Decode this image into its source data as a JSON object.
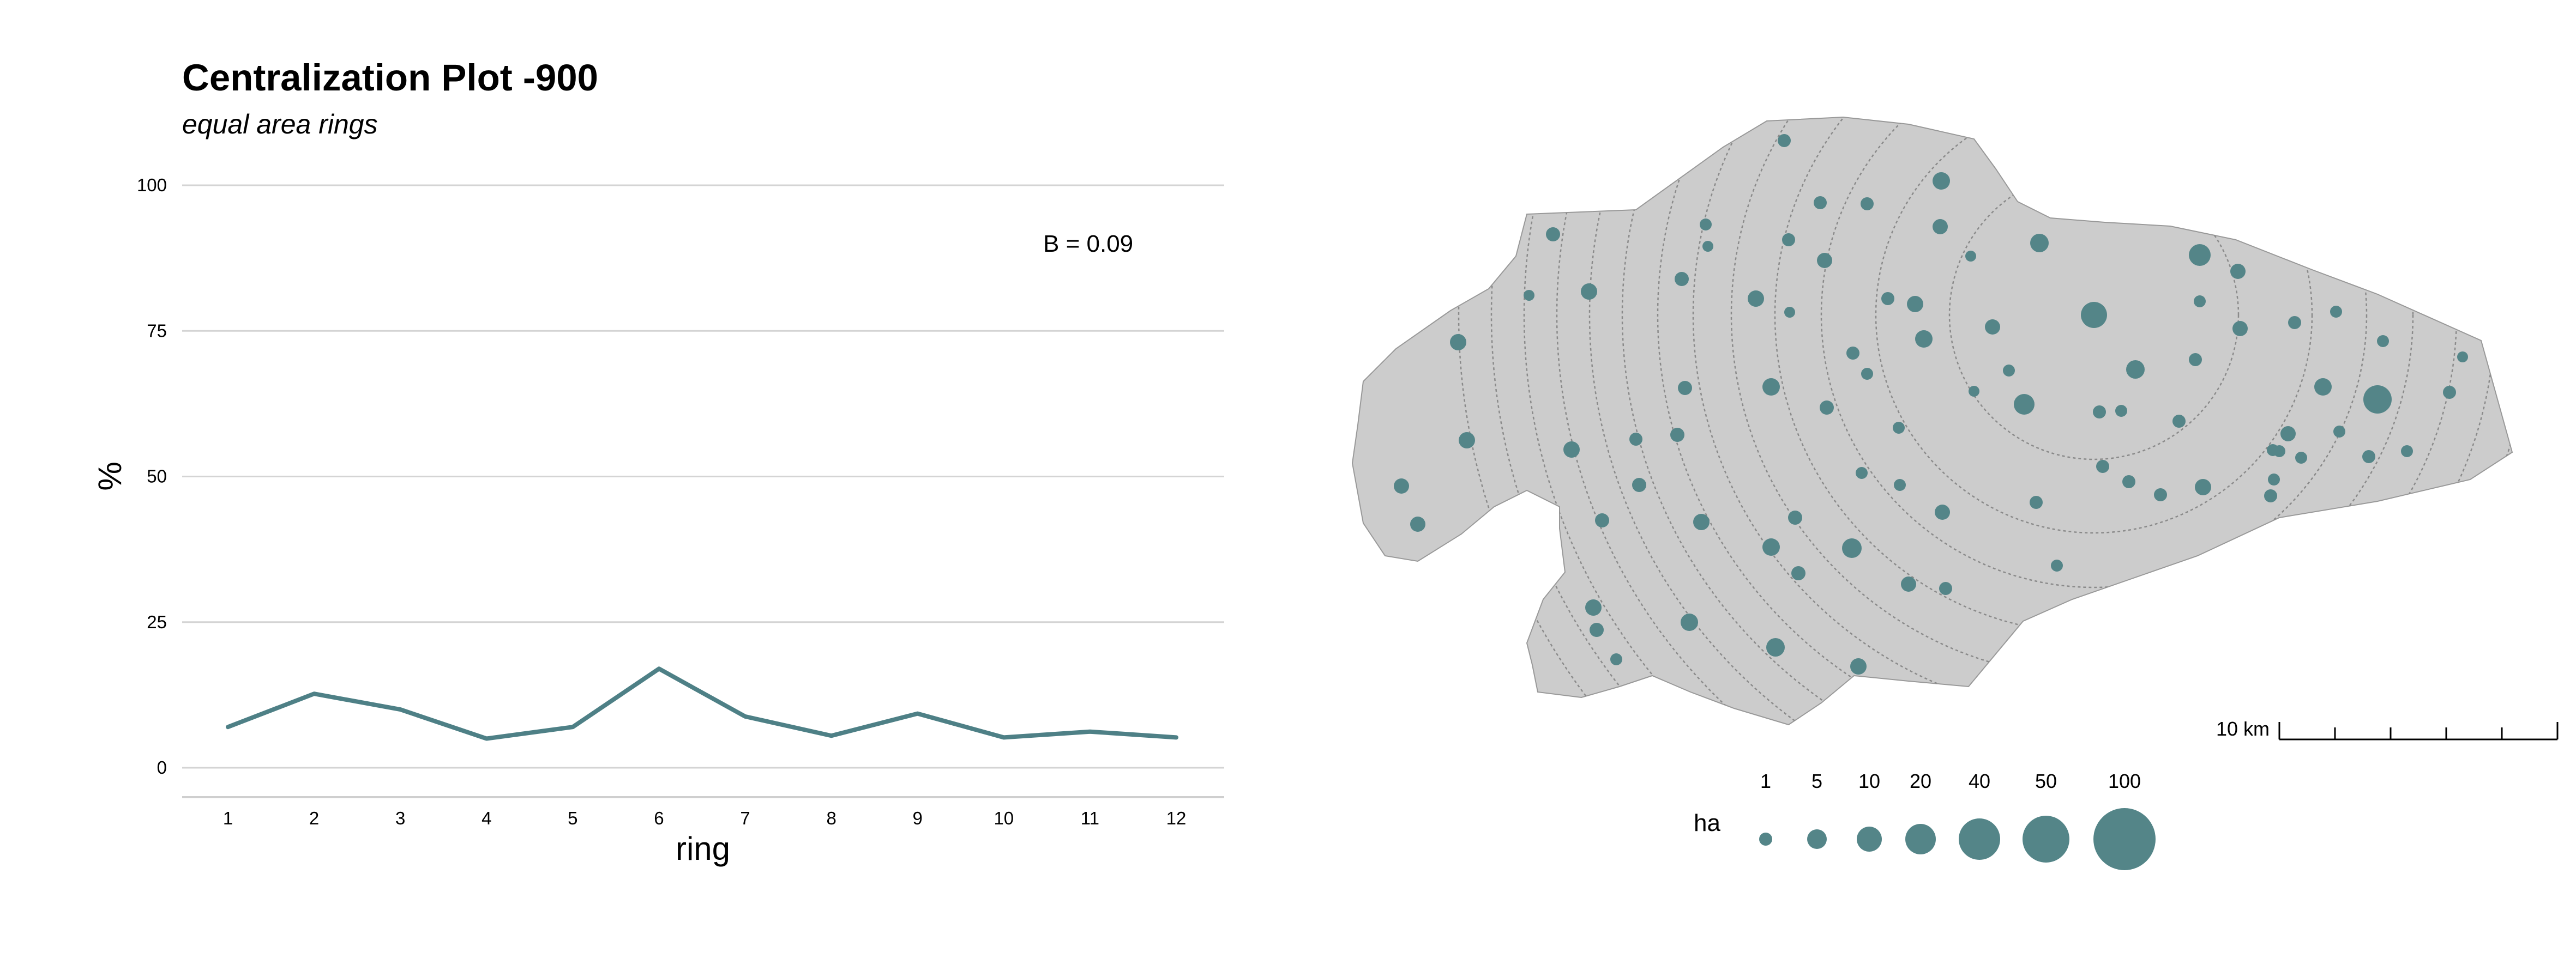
{
  "chart_data": [
    {
      "type": "line",
      "title": "Centralization  Plot  -900",
      "subtitle": "equal area rings",
      "xlabel": "ring",
      "ylabel": "%",
      "x": [
        1,
        2,
        3,
        4,
        5,
        6,
        7,
        8,
        9,
        10,
        11,
        12
      ],
      "series": [
        {
          "values": [
            7,
            12.7,
            10,
            5,
            7,
            17,
            8.8,
            5.5,
            9.3,
            5.2,
            6.2,
            5.2
          ]
        }
      ],
      "ylim": [
        0,
        100
      ],
      "yticks": [
        0,
        25,
        50,
        75,
        100
      ],
      "grid": true,
      "annotation": "B = 0.09",
      "line_color": "#4e8086"
    },
    {
      "type": "scatter",
      "subtype": "settlement map",
      "scale_bar": {
        "label": "10 km",
        "divisions": 5
      },
      "legend": {
        "title": "ha",
        "sizes": [
          1,
          5,
          10,
          20,
          40,
          50,
          100
        ]
      },
      "colors": {
        "region": "#cccccc",
        "site": "#548588"
      }
    }
  ]
}
